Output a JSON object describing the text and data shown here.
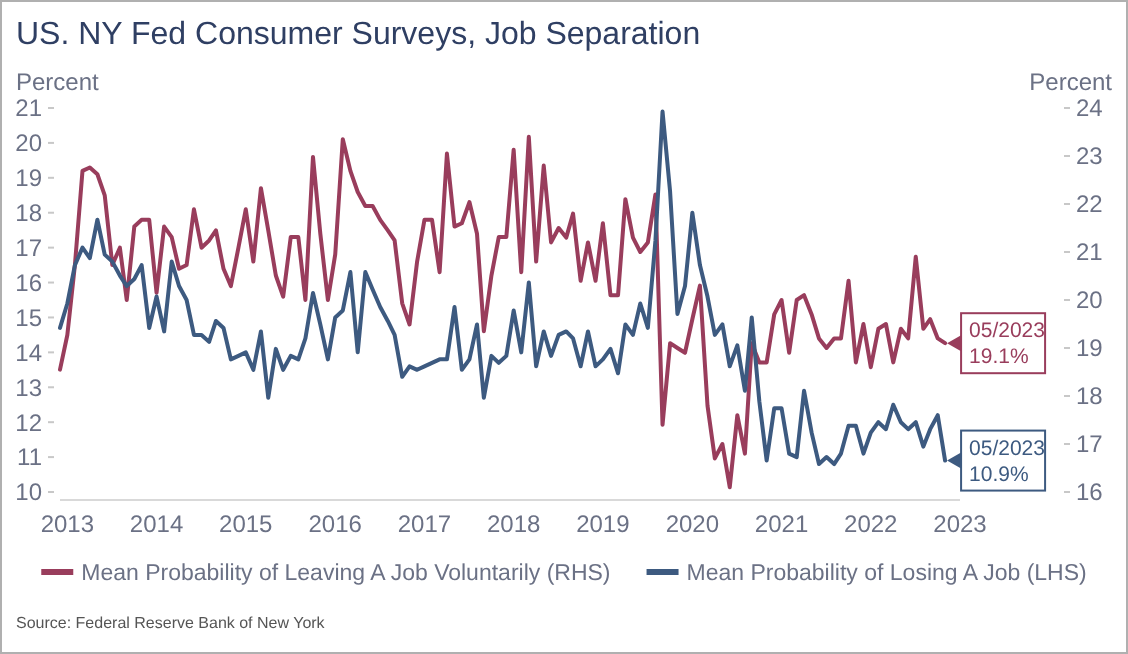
{
  "chart_data": {
    "type": "line",
    "title": "US. NY Fed Consumer Surveys, Job Separation",
    "ylabel": "Percent",
    "y2label": "Percent",
    "xlim": [
      "2013-06",
      "2023-07"
    ],
    "x": [
      "2013-06",
      "2013-07",
      "2013-08",
      "2013-09",
      "2013-10",
      "2013-11",
      "2013-12",
      "2014-01",
      "2014-02",
      "2014-03",
      "2014-04",
      "2014-05",
      "2014-06",
      "2014-07",
      "2014-08",
      "2014-09",
      "2014-10",
      "2014-11",
      "2014-12",
      "2015-01",
      "2015-02",
      "2015-03",
      "2015-04",
      "2015-05",
      "2015-06",
      "2015-07",
      "2015-08",
      "2015-09",
      "2015-10",
      "2015-11",
      "2015-12",
      "2016-01",
      "2016-02",
      "2016-03",
      "2016-04",
      "2016-05",
      "2016-06",
      "2016-07",
      "2016-08",
      "2016-09",
      "2016-10",
      "2016-11",
      "2016-12",
      "2017-01",
      "2017-02",
      "2017-03",
      "2017-04",
      "2017-05",
      "2017-06",
      "2017-07",
      "2017-08",
      "2017-09",
      "2017-10",
      "2017-11",
      "2017-12",
      "2018-01",
      "2018-02",
      "2018-03",
      "2018-04",
      "2018-05",
      "2018-06",
      "2018-07",
      "2018-08",
      "2018-09",
      "2018-10",
      "2018-11",
      "2018-12",
      "2019-01",
      "2019-02",
      "2019-03",
      "2019-04",
      "2019-05",
      "2019-06",
      "2019-07",
      "2019-08",
      "2019-09",
      "2019-10",
      "2019-11",
      "2019-12",
      "2020-01",
      "2020-02",
      "2020-03",
      "2020-04",
      "2020-05",
      "2020-06",
      "2020-07",
      "2020-08",
      "2020-09",
      "2020-10",
      "2020-11",
      "2020-12",
      "2021-01",
      "2021-02",
      "2021-03",
      "2021-04",
      "2021-05",
      "2021-06",
      "2021-07",
      "2021-08",
      "2021-09",
      "2021-10",
      "2021-11",
      "2021-12",
      "2022-01",
      "2022-02",
      "2022-03",
      "2022-04",
      "2022-05",
      "2022-06",
      "2022-07",
      "2022-08",
      "2022-09",
      "2022-10",
      "2022-11",
      "2022-12",
      "2023-01",
      "2023-02",
      "2023-03",
      "2023-04",
      "2023-05"
    ],
    "xticks": [
      {
        "value": "2013-07",
        "label": "2013"
      },
      {
        "value": "2014-07",
        "label": "2014"
      },
      {
        "value": "2015-07",
        "label": "2015"
      },
      {
        "value": "2016-07",
        "label": "2016"
      },
      {
        "value": "2017-07",
        "label": "2017"
      },
      {
        "value": "2018-07",
        "label": "2018"
      },
      {
        "value": "2019-07",
        "label": "2019"
      },
      {
        "value": "2020-07",
        "label": "2020"
      },
      {
        "value": "2021-07",
        "label": "2021"
      },
      {
        "value": "2022-07",
        "label": "2022"
      },
      {
        "value": "2023-07",
        "label": "2023"
      }
    ],
    "ylim": [
      10,
      21
    ],
    "yticks": [
      10,
      11,
      12,
      13,
      14,
      15,
      16,
      17,
      18,
      19,
      20,
      21
    ],
    "y2lim": [
      16,
      24
    ],
    "y2ticks": [
      16,
      17,
      18,
      19,
      20,
      21,
      22,
      23,
      24
    ],
    "legend": "bottom",
    "series": [
      {
        "name": "Mean Probability of Leaving A Job Voluntarily (RHS)",
        "color": "#993d5c",
        "axis": "y2",
        "values": [
          18.55,
          19.27,
          20.73,
          22.69,
          22.76,
          22.62,
          22.18,
          20.73,
          21.09,
          20.0,
          21.53,
          21.67,
          21.67,
          20.15,
          21.53,
          21.31,
          20.65,
          20.73,
          21.89,
          21.09,
          21.24,
          21.45,
          20.65,
          20.29,
          21.09,
          21.89,
          20.8,
          22.33,
          21.45,
          20.51,
          20.07,
          21.31,
          21.31,
          20.0,
          22.98,
          21.38,
          20.0,
          20.95,
          23.35,
          22.69,
          22.25,
          21.96,
          21.96,
          21.67,
          21.45,
          21.24,
          19.93,
          19.49,
          20.8,
          21.67,
          21.67,
          20.58,
          23.05,
          21.53,
          21.6,
          22.04,
          21.38,
          19.35,
          20.51,
          21.31,
          21.31,
          23.13,
          20.58,
          23.4,
          20.8,
          22.8,
          21.2,
          21.5,
          21.3,
          21.8,
          20.4,
          21.2,
          20.4,
          21.6,
          20.1,
          20.1,
          22.1,
          21.3,
          21.0,
          21.2,
          22.2,
          17.4,
          19.1,
          19.0,
          18.9,
          19.6,
          20.3,
          17.8,
          16.7,
          17.0,
          16.1,
          17.6,
          16.8,
          19.1,
          18.7,
          18.7,
          19.7,
          20.0,
          18.9,
          20.0,
          20.1,
          19.7,
          19.2,
          19.0,
          19.2,
          19.2,
          20.4,
          18.7,
          19.5,
          18.6,
          19.4,
          19.5,
          18.7,
          19.4,
          19.2,
          20.9,
          19.4,
          19.6,
          19.2,
          19.1
        ]
      },
      {
        "name": "Mean Probability of Losing A Job (LHS)",
        "color": "#3d5a80",
        "values": [
          14.7,
          15.4,
          16.5,
          17.0,
          16.7,
          17.8,
          16.8,
          16.6,
          16.2,
          15.9,
          16.1,
          16.5,
          14.7,
          15.6,
          14.6,
          16.6,
          15.9,
          15.5,
          14.5,
          14.5,
          14.3,
          14.9,
          14.7,
          13.8,
          13.9,
          14.0,
          13.5,
          14.6,
          12.7,
          14.1,
          13.5,
          13.9,
          13.8,
          14.4,
          15.7,
          14.8,
          13.8,
          15.0,
          15.2,
          16.3,
          14.0,
          16.3,
          15.8,
          15.3,
          14.9,
          14.5,
          13.3,
          13.6,
          13.5,
          13.6,
          13.7,
          13.8,
          13.8,
          15.3,
          13.5,
          13.8,
          14.8,
          12.7,
          13.9,
          13.7,
          13.9,
          15.2,
          14.0,
          16.0,
          13.6,
          14.6,
          13.9,
          14.5,
          14.6,
          14.4,
          13.6,
          14.6,
          13.6,
          13.8,
          14.1,
          13.4,
          14.8,
          14.5,
          15.4,
          14.7,
          17.2,
          20.9,
          18.6,
          15.1,
          15.9,
          18.0,
          16.5,
          15.6,
          14.5,
          14.8,
          13.6,
          14.2,
          12.9,
          15.0,
          12.6,
          10.9,
          12.4,
          12.4,
          11.1,
          11.0,
          12.9,
          11.7,
          10.8,
          11.0,
          10.8,
          11.1,
          11.9,
          11.9,
          11.1,
          11.7,
          12.0,
          11.8,
          12.5,
          12.0,
          11.8,
          12.0,
          11.3,
          11.8,
          12.2,
          10.9
        ]
      }
    ],
    "annotations": [
      "05/2023\n19.1%",
      {
        "text": "05/2023\n10.9%",
        "x": "2023-05",
        "y": 10.9
      },
      "Source: Federal Reserve Bank of New York"
    ]
  }
}
